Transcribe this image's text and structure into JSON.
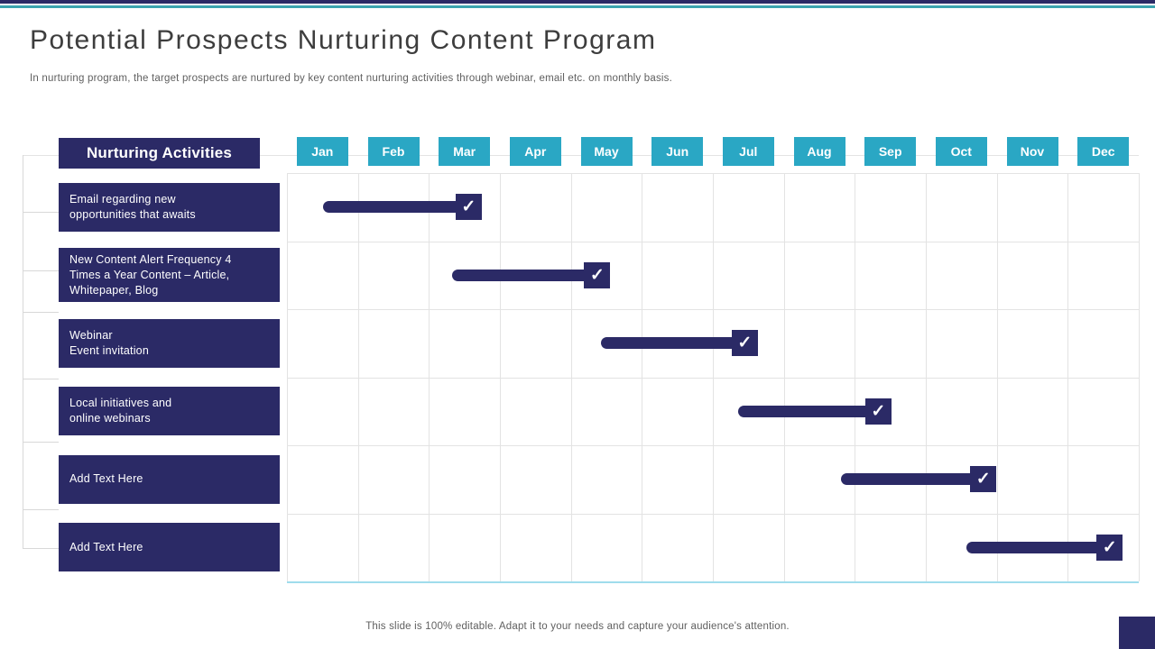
{
  "slide": {
    "title": "Potential Prospects Nurturing Content Program",
    "subtitle": "In nurturing program, the target prospects are nurtured by key content nurturing activities through webinar, email etc. on monthly basis.",
    "footer": "This slide is 100% editable. Adapt it to your needs and capture your audience's attention."
  },
  "table": {
    "header": "Nurturing Activities"
  },
  "icons": {
    "check": "✓"
  },
  "colors": {
    "navy": "#2B2A66",
    "teal": "#2AA7C4",
    "top_bar_teal": "#3BA4AF",
    "grid_line": "#E3E3E3",
    "chart_bottom_edge": "#9FDCEC",
    "title_text": "#3D3D3D",
    "muted_text": "#5F5F5F"
  },
  "chart_data": {
    "type": "gantt",
    "title": "Potential Prospects Nurturing Content Program",
    "categories": [
      "Jan",
      "Feb",
      "Mar",
      "Apr",
      "May",
      "Jun",
      "Jul",
      "Aug",
      "Sep",
      "Oct",
      "Nov",
      "Dec"
    ],
    "x_range_months": [
      0,
      12
    ],
    "grid": true,
    "marker": "checkbox-at-end",
    "tasks": [
      {
        "label": "Email regarding new\nopportunities that awaits",
        "start_month": 0.51,
        "end_month": 2.56,
        "placeholder": false
      },
      {
        "label": "New Content Alert Frequency 4\nTimes a Year Content – Article,\nWhitepaper, Blog",
        "start_month": 2.33,
        "end_month": 4.37,
        "placeholder": false
      },
      {
        "label": "Webinar\nEvent invitation",
        "start_month": 4.42,
        "end_month": 6.45,
        "placeholder": false
      },
      {
        "label": "Local initiatives and\nonline webinars",
        "start_month": 6.36,
        "end_month": 8.33,
        "placeholder": false
      },
      {
        "label": "Add Text Here",
        "start_month": 7.81,
        "end_month": 9.81,
        "placeholder": true
      },
      {
        "label": "Add Text Here",
        "start_month": 9.57,
        "end_month": 11.59,
        "placeholder": true
      }
    ]
  }
}
